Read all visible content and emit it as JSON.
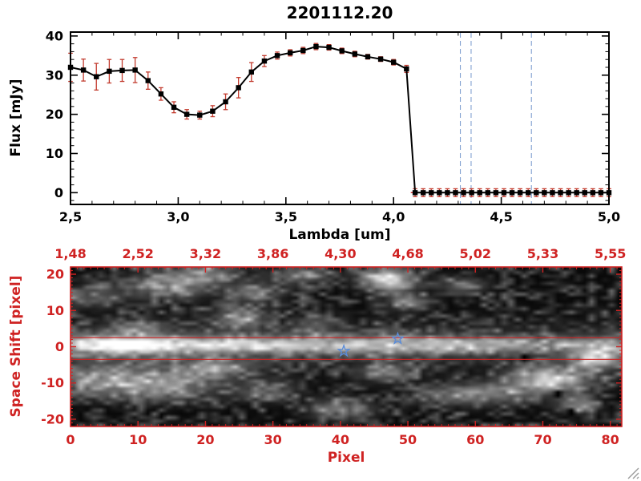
{
  "chart_data": [
    {
      "id": "flux-spectrum",
      "type": "line",
      "title": "2201112.20",
      "xlabel": "Lambda [um]",
      "ylabel": "Flux [mJy]",
      "xlim": [
        2.5,
        5.0
      ],
      "ylim": [
        -3,
        41
      ],
      "xtick_values": [
        2.5,
        3.0,
        3.5,
        4.0,
        4.5,
        5.0
      ],
      "xtick_labels": [
        "2,5",
        "3,0",
        "3,5",
        "4,0",
        "4,5",
        "5,0"
      ],
      "ytick_values": [
        0,
        10,
        20,
        30,
        40
      ],
      "ytick_labels": [
        "0",
        "10",
        "20",
        "30",
        "40"
      ],
      "x_minor_step": 0.1,
      "y_minor_step": 2,
      "grid": false,
      "legend": "none",
      "series": [
        {
          "name": "spectrum",
          "color": "#000000",
          "error_color": "#c23b2e",
          "marker": "filled-square",
          "points": [
            [
              2.5,
              32.0,
              3.6
            ],
            [
              2.56,
              31.3,
              2.8
            ],
            [
              2.62,
              29.6,
              3.4
            ],
            [
              2.68,
              31.0,
              3.0
            ],
            [
              2.74,
              31.2,
              2.8
            ],
            [
              2.8,
              31.3,
              3.2
            ],
            [
              2.86,
              28.6,
              2.2
            ],
            [
              2.92,
              25.2,
              1.6
            ],
            [
              2.98,
              21.8,
              1.4
            ],
            [
              3.04,
              20.0,
              1.2
            ],
            [
              3.1,
              19.8,
              1.0
            ],
            [
              3.16,
              20.8,
              1.4
            ],
            [
              3.22,
              23.2,
              2.0
            ],
            [
              3.28,
              26.8,
              2.6
            ],
            [
              3.34,
              30.8,
              2.4
            ],
            [
              3.4,
              33.6,
              1.4
            ],
            [
              3.46,
              35.0,
              0.9
            ],
            [
              3.52,
              35.7,
              0.8
            ],
            [
              3.58,
              36.3,
              0.8
            ],
            [
              3.64,
              37.3,
              0.8
            ],
            [
              3.7,
              37.1,
              0.7
            ],
            [
              3.76,
              36.2,
              0.7
            ],
            [
              3.82,
              35.4,
              0.7
            ],
            [
              3.88,
              34.7,
              0.6
            ],
            [
              3.94,
              34.1,
              0.6
            ],
            [
              4.0,
              33.3,
              0.7
            ],
            [
              4.06,
              31.6,
              0.9
            ]
          ]
        }
      ],
      "zero_tail": {
        "start": 4.1,
        "end": 5.0,
        "count": 25,
        "value": 0,
        "err": 1.0
      },
      "vlines": {
        "values": [
          4.31,
          4.36,
          4.64
        ],
        "color": "#80a0d0",
        "style": "dashed"
      },
      "hline": {
        "y": 0,
        "x_start": 4.08,
        "x_end": 5.0,
        "color": "#cf2222",
        "style": "dashed"
      }
    },
    {
      "id": "spectral-image",
      "type": "heatmap",
      "xlabel": "Pixel",
      "ylabel": "Space Shift [pixel]",
      "axis_color": "#cf2222",
      "xlim": [
        0,
        81.7
      ],
      "ylim": [
        -22,
        22
      ],
      "xtick_values": [
        0,
        10,
        20,
        30,
        40,
        50,
        60,
        70,
        80
      ],
      "xtick_labels": [
        "0",
        "10",
        "20",
        "30",
        "40",
        "50",
        "60",
        "70",
        "80"
      ],
      "ytick_values": [
        -20,
        -10,
        0,
        10,
        20
      ],
      "ytick_labels": [
        "-20",
        "-10",
        "0",
        "10",
        "20"
      ],
      "x_minor_step": 1,
      "y_minor_step": 1,
      "top_axis_labels": [
        "1,48",
        "2,52",
        "3,32",
        "3,86",
        "4,30",
        "4,68",
        "5,02",
        "5,33",
        "5,55"
      ],
      "aperture_lines": {
        "y": [
          2.5,
          -3.5
        ],
        "color": "#cf2222"
      },
      "stars": {
        "points": [
          [
            40.5,
            -1.2
          ],
          [
            48.5,
            2.2
          ]
        ],
        "color": "#5b8dd9"
      },
      "image": {
        "colormap": "gray",
        "stripe": {
          "y_center": 0.5,
          "sigma": 1.5,
          "halo_sigma": 4.2,
          "halo_gain": 0.24,
          "profile": [
            [
              0,
              0.5
            ],
            [
              3,
              0.68
            ],
            [
              6,
              0.88
            ],
            [
              9,
              0.95
            ],
            [
              12,
              0.9
            ],
            [
              16,
              0.72
            ],
            [
              22,
              0.62
            ],
            [
              30,
              0.58
            ],
            [
              38,
              0.56
            ],
            [
              48,
              0.54
            ],
            [
              58,
              0.5
            ],
            [
              64,
              0.45
            ],
            [
              70,
              0.35
            ],
            [
              76,
              0.38
            ],
            [
              82,
              0.35
            ]
          ]
        },
        "blobs": [
          [
            14,
            17,
            4,
            2.5,
            0.4
          ],
          [
            20,
            20,
            3,
            2,
            0.35
          ],
          [
            27,
            15,
            3,
            2,
            0.3
          ],
          [
            25,
            8,
            2.5,
            2,
            0.38
          ],
          [
            34,
            19.5,
            3,
            1.5,
            0.35
          ],
          [
            47,
            18.5,
            2.5,
            2,
            0.8
          ],
          [
            50,
            12.5,
            2,
            1.5,
            0.4
          ],
          [
            58,
            17,
            2.5,
            1.5,
            0.28
          ],
          [
            3,
            14,
            3,
            2,
            0.25
          ],
          [
            10,
            5,
            3,
            1.5,
            0.2
          ],
          [
            36,
            6,
            2,
            1.5,
            0.22
          ],
          [
            5,
            -9,
            6,
            3,
            0.4
          ],
          [
            14,
            -11,
            5,
            2.5,
            0.38
          ],
          [
            21,
            -6,
            3.5,
            2,
            0.42
          ],
          [
            29,
            -12,
            3,
            2,
            0.28
          ],
          [
            40,
            -17,
            3,
            2,
            0.33
          ],
          [
            47,
            -7,
            2.5,
            2,
            0.28
          ],
          [
            57,
            -13,
            3.5,
            2,
            0.33
          ],
          [
            64,
            -13,
            3,
            2,
            0.3
          ],
          [
            71,
            -9,
            4,
            2.5,
            0.65
          ],
          [
            78,
            -3,
            2.5,
            2.2,
            0.6
          ],
          [
            75,
            -16,
            2,
            1.5,
            0.38
          ]
        ],
        "dropouts": [
          [
            67.5,
            -2
          ],
          [
            72,
            -12.5
          ],
          [
            74.5,
            -17
          ]
        ]
      }
    }
  ],
  "icons": {
    "resize_grip": "diagonal-resize-lines"
  }
}
